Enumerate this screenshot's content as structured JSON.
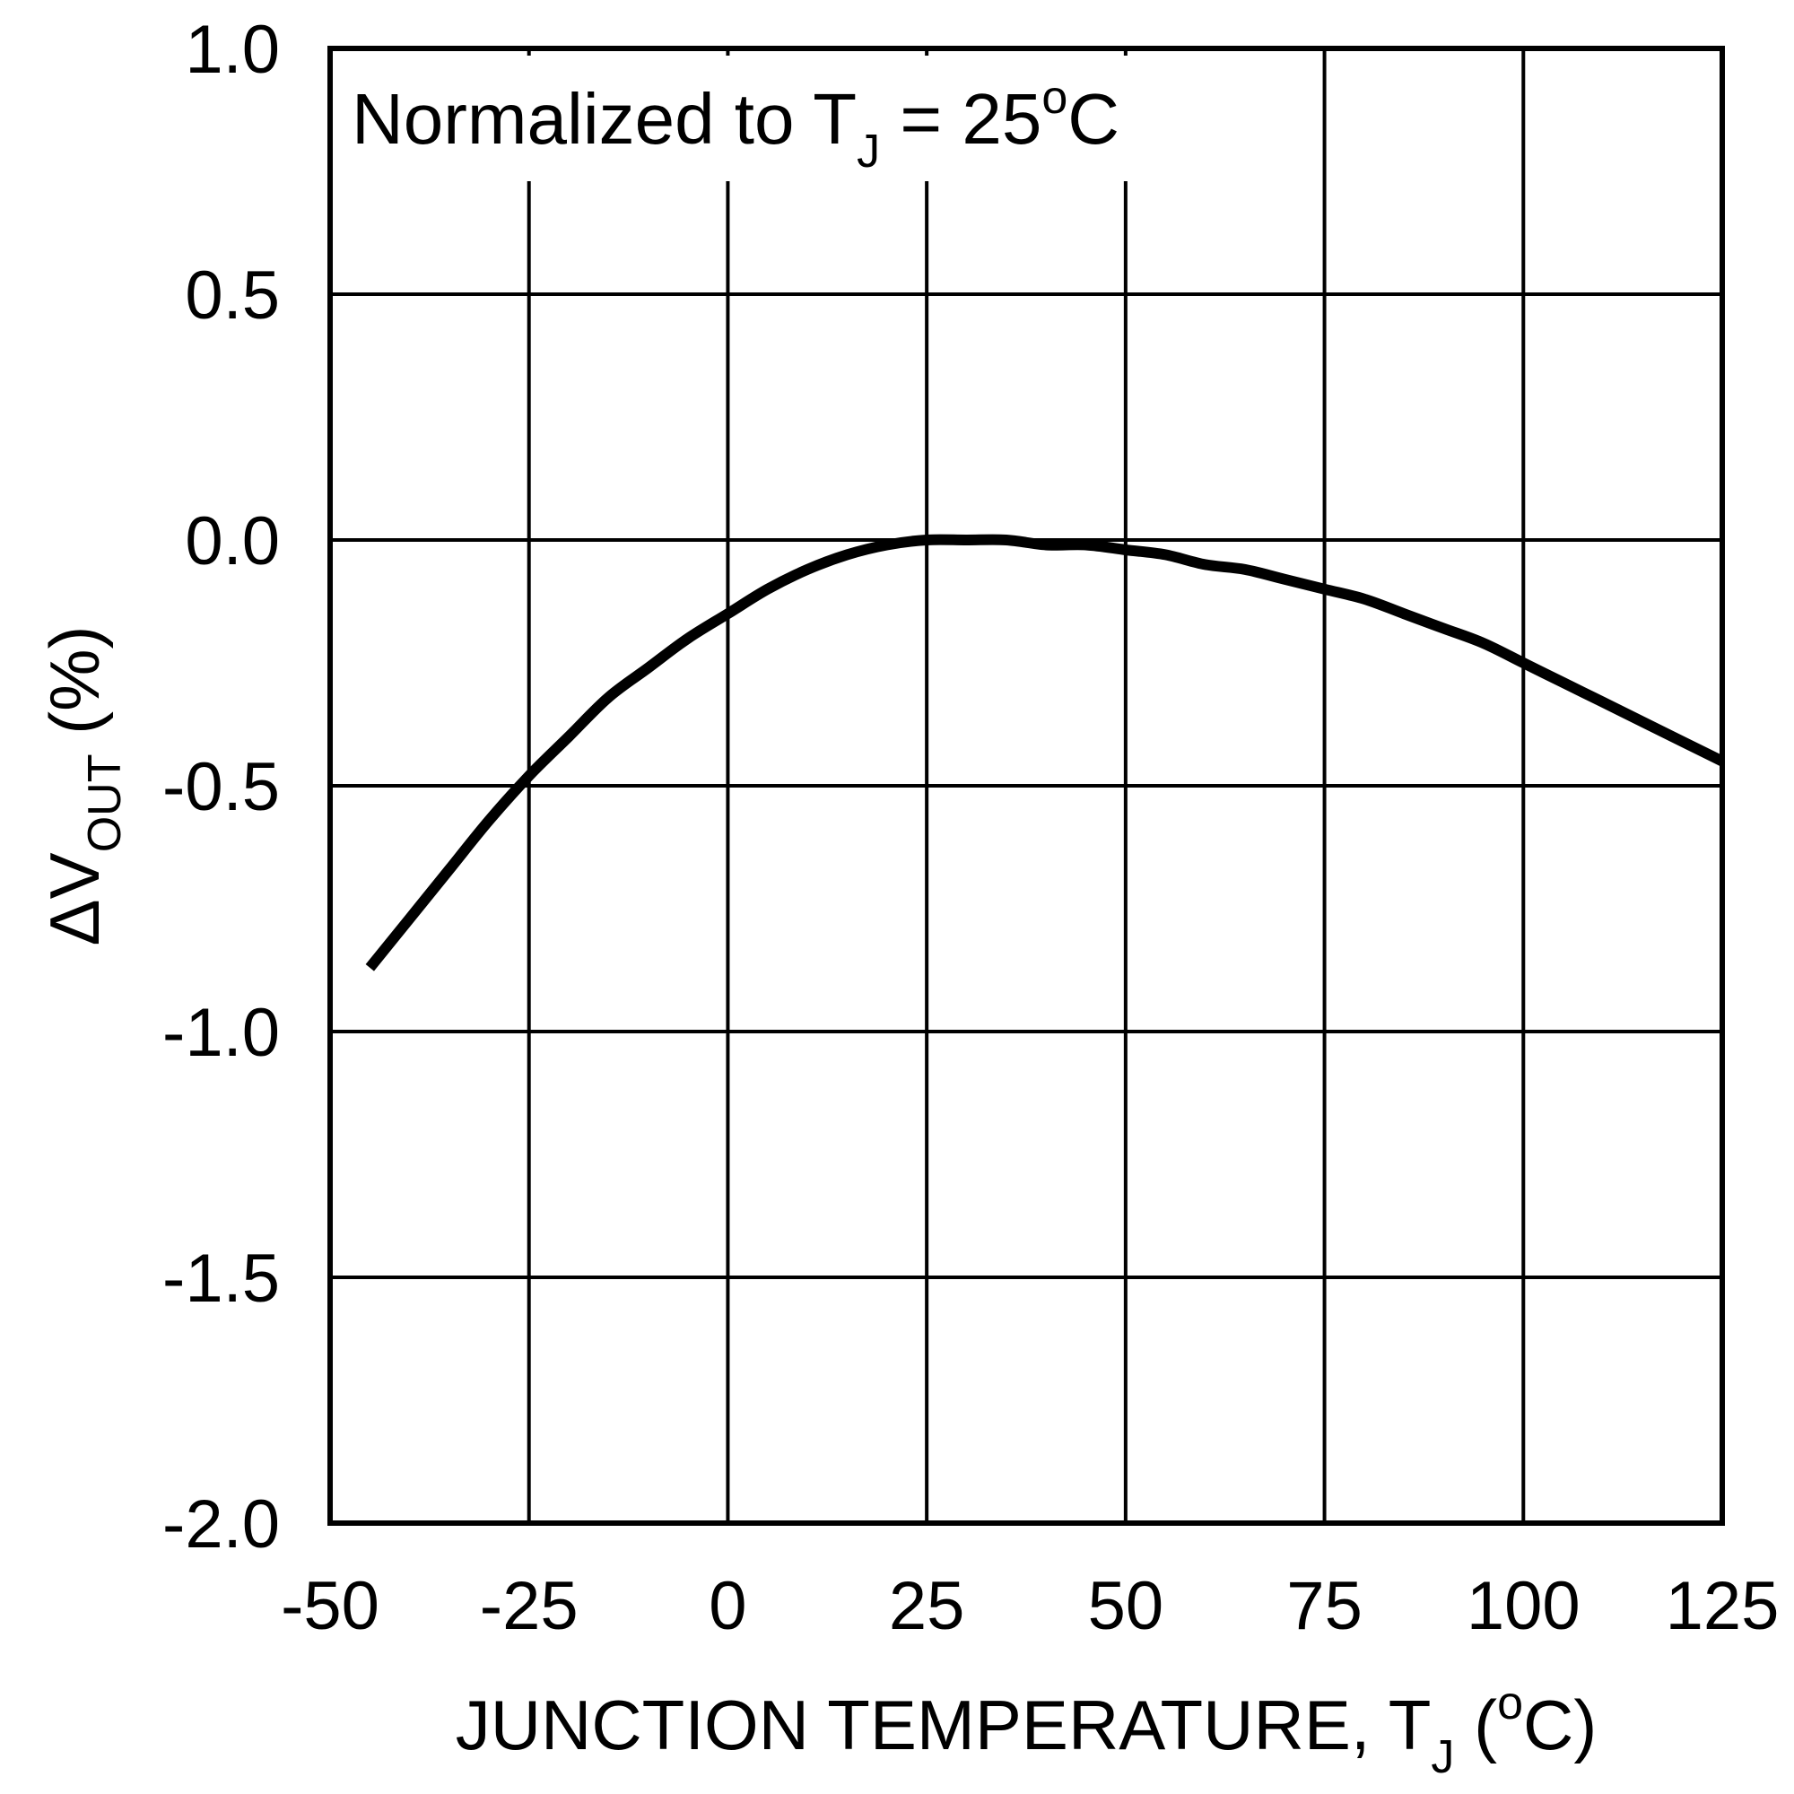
{
  "chart_data": {
    "type": "line",
    "annotation": {
      "prefix": "Normalized to T",
      "sub": "J",
      "middle": " = 25",
      "sup": "o",
      "suffix": "C"
    },
    "xlabel": {
      "prefix": "JUNCTION TEMPERATURE, T",
      "sub": "J",
      "middle": " (",
      "sup": "o",
      "suffix": "C)"
    },
    "ylabel": {
      "prefix": "ΔV",
      "sub": "OUT",
      "suffix": " (%)"
    },
    "xlim": [
      -50,
      125
    ],
    "ylim": [
      -2.0,
      1.0
    ],
    "xticks": [
      -50,
      -25,
      0,
      25,
      50,
      75,
      100,
      125
    ],
    "yticks": [
      -2.0,
      -1.5,
      -1.0,
      -0.5,
      0.0,
      0.5,
      1.0
    ],
    "xtick_labels": [
      "-50",
      "-25",
      "0",
      "25",
      "50",
      "75",
      "100",
      "125"
    ],
    "ytick_labels": [
      "-2.0",
      "-1.5",
      "-1.0",
      "-0.5",
      "0.0",
      "0.5",
      "1.0"
    ],
    "grid": true,
    "series": [
      {
        "x": [
          -45,
          -40,
          -35,
          -30,
          -25,
          -20,
          -15,
          -10,
          -5,
          0,
          5,
          10,
          15,
          20,
          25,
          30,
          35,
          40,
          45,
          50,
          55,
          60,
          65,
          70,
          75,
          80,
          85,
          90,
          95,
          100,
          105,
          110,
          115,
          120,
          125
        ],
        "y": [
          -0.87,
          -0.77,
          -0.67,
          -0.57,
          -0.48,
          -0.4,
          -0.32,
          -0.26,
          -0.2,
          -0.15,
          -0.1,
          -0.06,
          -0.03,
          -0.01,
          0.0,
          0.0,
          0.0,
          -0.01,
          -0.01,
          -0.02,
          -0.03,
          -0.05,
          -0.06,
          -0.08,
          -0.1,
          -0.12,
          -0.15,
          -0.18,
          -0.21,
          -0.25,
          -0.29,
          -0.33,
          -0.37,
          -0.41,
          -0.45
        ]
      }
    ]
  }
}
